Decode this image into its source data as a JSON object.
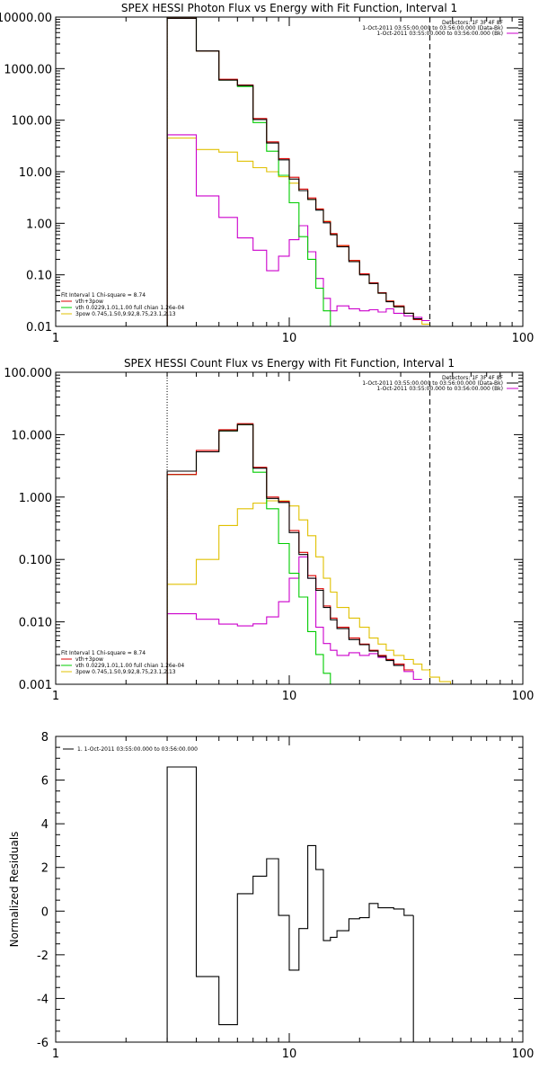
{
  "chart_data": [
    {
      "type": "line",
      "title": "SPEX HESSI Photon Flux vs Energy with Fit Function, Interval 1",
      "xscale": "log",
      "yscale": "log",
      "xlim": [
        1,
        100
      ],
      "ylim": [
        0.01,
        10000
      ],
      "x_tick_labels": [
        "1",
        "10",
        "100"
      ],
      "y_tick_labels": [
        "0.01",
        "0.10",
        "1.00",
        "10.00",
        "100.00",
        "1000.00",
        "10000.00"
      ],
      "header_lines": [
        "Detectors: 1F 3F 4F 8F",
        "1-Oct-2011 03:55:00.000 to 03:56:00.000 (Data-Bk)",
        "1-Oct-2011 03:55:00.000 to 03:56:00.000 (Bk)"
      ],
      "fit_legend_title": "Fit Interval 1    Chi-square = 8.74",
      "fit_legend": [
        {
          "label": "vth+3pow",
          "color": "#dd0000"
        },
        {
          "label": "vth 0.0229,1.01,1.00  full chian 1.26e-04",
          "color": "#00cc00"
        },
        {
          "label": "3pow 0.745,1.50,9.92,8.75,23.1,2.13",
          "color": "#e0c000"
        }
      ],
      "edges": [
        3.0,
        4.0,
        5.0,
        6.0,
        7.0,
        8.0,
        9.0,
        10.0,
        11.0,
        12.0,
        13.0,
        14.0,
        15.0,
        16.0,
        18.0,
        20.0,
        22.0,
        24.0,
        26.0,
        28.0,
        31.0,
        34.0,
        37.0,
        40.0,
        44.0,
        49.0,
        55.0
      ],
      "series": [
        {
          "color": "#000000",
          "values": [
            9500,
            2200,
            600,
            470,
            103,
            36,
            17,
            7.2,
            4.3,
            2.9,
            1.8,
            1.02,
            0.6,
            0.35,
            0.18,
            0.1,
            0.068,
            0.044,
            0.03,
            0.024,
            0.018,
            0.014
          ]
        },
        {
          "color": "#dd0000",
          "values": [
            9500,
            2200,
            620,
            480,
            108,
            38,
            18,
            7.8,
            4.6,
            3.1,
            1.9,
            1.08,
            0.63,
            0.37,
            0.19,
            0.105,
            0.07,
            0.045,
            0.031,
            0.025,
            0.018,
            0.0135
          ]
        },
        {
          "color": "#00cc00",
          "values": [
            9500,
            2200,
            600,
            450,
            90,
            25,
            8.5,
            2.5,
            0.55,
            0.2,
            0.055,
            0.02,
            0.009,
            0.006
          ]
        },
        {
          "color": "#e0c000",
          "values": [
            45,
            27,
            24,
            16,
            12,
            10,
            8,
            6,
            4.3,
            2.9,
            1.9,
            1.1,
            0.62,
            0.36,
            0.19,
            0.104,
            0.068,
            0.044,
            0.031,
            0.024,
            0.018,
            0.014,
            0.011,
            0.009
          ]
        },
        {
          "color": "#cc00cc",
          "values": [
            52,
            3.4,
            1.3,
            0.52,
            0.3,
            0.12,
            0.23,
            0.48,
            0.9,
            0.28,
            0.085,
            0.035,
            0.02,
            0.025,
            0.022,
            0.02,
            0.021,
            0.019,
            0.022,
            0.018,
            0.016,
            0.015,
            0.013
          ]
        }
      ]
    },
    {
      "type": "line",
      "title": "SPEX HESSI Count Flux vs Energy with Fit Function, Interval 1",
      "xscale": "log",
      "yscale": "log",
      "xlim": [
        1,
        100
      ],
      "ylim": [
        0.001,
        100
      ],
      "x_tick_labels": [
        "1",
        "10",
        "100"
      ],
      "y_tick_labels": [
        "0.001",
        "0.010",
        "0.100",
        "1.000",
        "10.000",
        "100.000"
      ],
      "header_lines": [
        "Detectors: 1F 3F 4F 8F",
        "1-Oct-2011 03:55:00.000 to 03:56:00.000 (Data-Bk)",
        "1-Oct-2011 03:55:00.000 to 03:56:00.000 (Bk)"
      ],
      "fit_legend_title": "Fit Interval 1    Chi-square = 8.74",
      "fit_legend": [
        {
          "label": "vth+3pow",
          "color": "#dd0000"
        },
        {
          "label": "vth 0.0229,1.01,1.00  full chian 1.26e-04",
          "color": "#00cc00"
        },
        {
          "label": "3pow 0.745,1.50,9.92,8.75,23.1,2.13",
          "color": "#e0c000"
        }
      ],
      "edges": [
        3.0,
        4.0,
        5.0,
        6.0,
        7.0,
        8.0,
        9.0,
        10.0,
        11.0,
        12.0,
        13.0,
        14.0,
        15.0,
        16.0,
        18.0,
        20.0,
        22.0,
        24.0,
        26.0,
        28.0,
        31.0,
        34.0,
        37.0,
        40.0,
        44.0,
        49.0,
        55.0
      ],
      "series": [
        {
          "color": "#000000",
          "values": [
            2.6,
            5.3,
            11.5,
            14.5,
            2.9,
            0.95,
            0.82,
            0.27,
            0.12,
            0.05,
            0.032,
            0.017,
            0.0108,
            0.0078,
            0.0052,
            0.0043,
            0.0034,
            0.0028,
            0.0024,
            0.002
          ]
        },
        {
          "color": "#dd0000",
          "values": [
            2.3,
            5.6,
            12.0,
            15.0,
            3.0,
            1.0,
            0.85,
            0.29,
            0.13,
            0.055,
            0.034,
            0.018,
            0.0115,
            0.0082,
            0.0055,
            0.0044,
            0.0035,
            0.0029,
            0.0025,
            0.0021,
            0.0017
          ]
        },
        {
          "color": "#00cc00",
          "values": [
            2.3,
            5.3,
            11.5,
            14.5,
            2.5,
            0.65,
            0.18,
            0.06,
            0.025,
            0.007,
            0.003,
            0.0015,
            0.001
          ]
        },
        {
          "color": "#e0c000",
          "values": [
            0.04,
            0.1,
            0.35,
            0.65,
            0.8,
            0.87,
            0.87,
            0.72,
            0.43,
            0.24,
            0.11,
            0.05,
            0.03,
            0.017,
            0.0115,
            0.0082,
            0.0055,
            0.0044,
            0.0035,
            0.0029,
            0.0025,
            0.0021,
            0.0017,
            0.0013,
            0.0011,
            0.001
          ]
        },
        {
          "color": "#cc00cc",
          "values": [
            0.0135,
            0.011,
            0.0092,
            0.0086,
            0.0093,
            0.012,
            0.021,
            0.05,
            0.11,
            0.05,
            0.0082,
            0.0045,
            0.0035,
            0.0029,
            0.0032,
            0.0029,
            0.0031,
            0.0027,
            0.0025,
            0.0021,
            0.0016,
            0.0012
          ]
        }
      ]
    },
    {
      "type": "line",
      "title": "",
      "xscale": "log",
      "xlim": [
        1,
        100
      ],
      "ylim": [
        -6,
        8
      ],
      "ylabel": "Normalized Residuals",
      "x_tick_labels": [
        "1",
        "10",
        "100"
      ],
      "y_ticks": [
        -6,
        -4,
        -2,
        0,
        2,
        4,
        6,
        8
      ],
      "legend_text": "1. 1-Oct-2011 03:55:00.000 to 03:56:00.000",
      "edges": [
        3.0,
        4.0,
        5.0,
        6.0,
        7.0,
        8.0,
        9.0,
        10.0,
        11.0,
        12.0,
        13.0,
        14.0,
        15.0,
        16.0,
        18.0,
        20.0,
        22.0,
        24.0,
        26.0,
        28.0,
        31.0,
        34.0,
        37.0,
        40.0
      ],
      "series": [
        {
          "color": "#000000",
          "values": [
            6.6,
            -3.0,
            -5.2,
            0.8,
            1.6,
            2.4,
            -0.2,
            -2.7,
            -0.8,
            3.0,
            1.9,
            -1.35,
            -1.2,
            -0.9,
            -0.35,
            -0.3,
            0.35,
            0.15,
            0.15,
            0.1,
            -0.2
          ]
        }
      ]
    }
  ]
}
